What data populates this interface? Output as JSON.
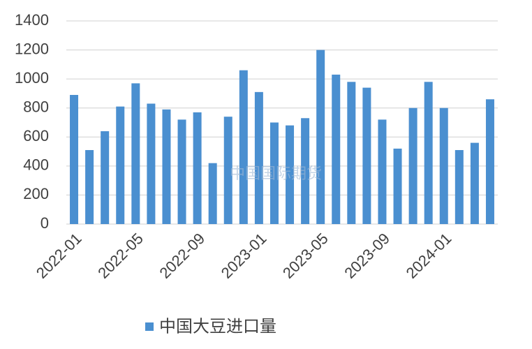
{
  "chart_data": {
    "type": "bar",
    "categories": [
      "2022-01",
      null,
      null,
      null,
      "2022-05",
      null,
      null,
      null,
      "2022-09",
      null,
      null,
      null,
      "2023-01",
      null,
      null,
      null,
      "2023-05",
      null,
      null,
      null,
      "2023-09",
      null,
      null,
      null,
      "2024-01",
      null,
      null,
      null
    ],
    "series": [
      {
        "name": "中国大豆进口量",
        "color": "#4a8fd0",
        "values": [
          890,
          510,
          640,
          810,
          970,
          830,
          790,
          720,
          770,
          420,
          740,
          1060,
          910,
          700,
          680,
          730,
          1200,
          1030,
          980,
          940,
          720,
          520,
          800,
          980,
          800,
          510,
          560,
          860
        ]
      }
    ],
    "ylim": [
      0,
      1400
    ],
    "yticks": [
      0,
      200,
      400,
      600,
      800,
      1000,
      1200,
      1400
    ],
    "grid": true,
    "legend": "bottom",
    "watermark": "中国国际期货"
  }
}
